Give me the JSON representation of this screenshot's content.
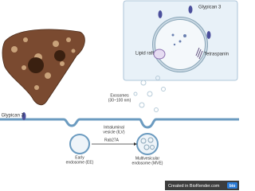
{
  "inset": {
    "glypican": "Glypican 3",
    "lipid_raft": "Lipid raft",
    "tetraspanin": "Tetraspanin"
  },
  "main": {
    "glypican": "Glypican 3",
    "exosomes": [
      "Exosomes",
      "(30~100 nm)"
    ],
    "ilv": [
      "Intraluminal",
      "vesicle (ILV)"
    ],
    "rab": "Rab27A",
    "early_endosome": [
      "Early",
      "endosome (EE)"
    ],
    "mve": [
      "Multivesicular",
      "endosome (MVE)"
    ]
  },
  "footer": {
    "text": "Created in BioRender.com",
    "badge": "bio"
  }
}
